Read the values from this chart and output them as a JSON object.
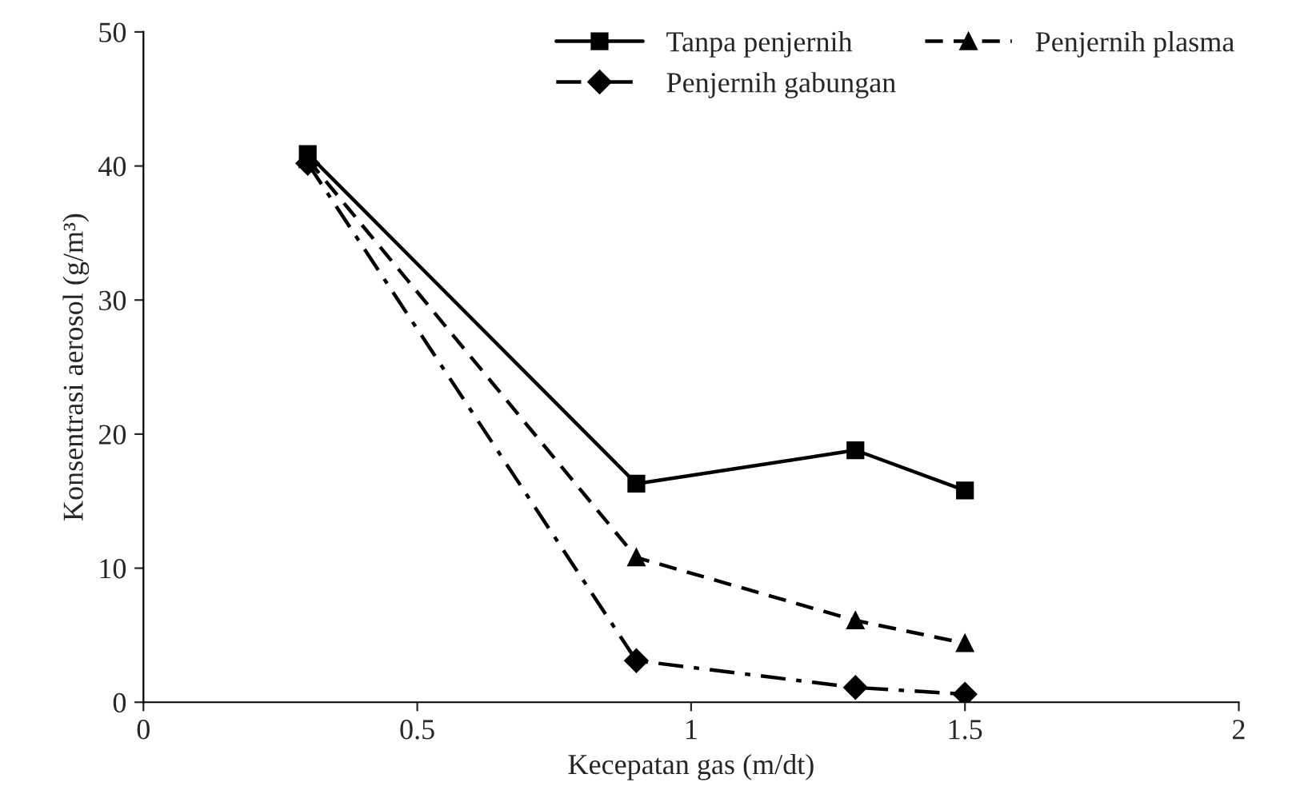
{
  "chart_data": {
    "type": "line",
    "xlabel": "Kecepatan gas (m/dt)",
    "ylabel": "Konsentrasi aerosol (g/m³)",
    "xlim": [
      0,
      2
    ],
    "xticks": [
      0,
      0.5,
      1,
      1.5,
      2
    ],
    "ylim": [
      0,
      50
    ],
    "yticks": [
      0,
      10,
      20,
      30,
      40,
      50
    ],
    "grid": false,
    "legend": "top right",
    "series": [
      {
        "name": "Tanpa penjernih",
        "color": "#000000",
        "marker": "square",
        "line_style": "solid",
        "x": [
          0.3,
          0.9,
          1.3,
          1.5
        ],
        "values": [
          40.9,
          16.3,
          18.8,
          15.8
        ]
      },
      {
        "name": "Penjernih plasma",
        "color": "#000000",
        "marker": "triangle",
        "line_style": "dashed",
        "x": [
          0.3,
          0.9,
          1.3,
          1.5
        ],
        "values": [
          40.5,
          10.8,
          6.1,
          4.4
        ]
      },
      {
        "name": "Penjernih gabungan",
        "color": "#000000",
        "marker": "diamond",
        "line_style": "dashdot",
        "x": [
          0.3,
          0.9,
          1.3,
          1.5
        ],
        "values": [
          40.2,
          3.1,
          1.1,
          0.6
        ]
      }
    ]
  }
}
